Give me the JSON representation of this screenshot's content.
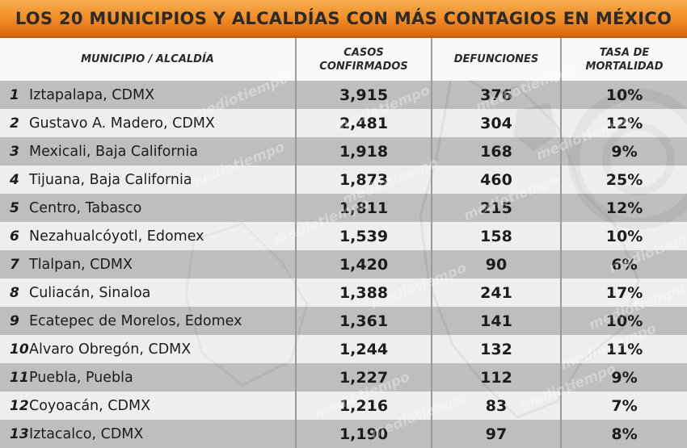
{
  "chart_data": {
    "type": "table",
    "title": "LOS 20 MUNICIPIOS Y ALCALDÍAS CON MÁS CONTAGIOS EN MÉXICO",
    "columns": [
      {
        "label_lines": [
          "MUNICIPIO / ALCALDÍA"
        ]
      },
      {
        "label_lines": [
          "CASOS",
          "CONFIRMADOS"
        ]
      },
      {
        "label_lines": [
          "DEFUNCIONES"
        ]
      },
      {
        "label_lines": [
          "TASA DE",
          "MORTALIDAD"
        ]
      }
    ],
    "rows": [
      {
        "rank": "1",
        "municipio": "Iztapalapa, CDMX",
        "casos": "3,915",
        "defunciones": "376",
        "tasa": "10%"
      },
      {
        "rank": "2",
        "municipio": "Gustavo A. Madero, CDMX",
        "casos": "2,481",
        "defunciones": "304",
        "tasa": "12%"
      },
      {
        "rank": "3",
        "municipio": "Mexicali, Baja California",
        "casos": "1,918",
        "defunciones": "168",
        "tasa": "9%"
      },
      {
        "rank": "4",
        "municipio": "Tijuana, Baja California",
        "casos": "1,873",
        "defunciones": "460",
        "tasa": "25%"
      },
      {
        "rank": "5",
        "municipio": "Centro, Tabasco",
        "casos": "1,811",
        "defunciones": "215",
        "tasa": "12%"
      },
      {
        "rank": "6",
        "municipio": "Nezahualcóyotl, Edomex",
        "casos": "1,539",
        "defunciones": "158",
        "tasa": "10%"
      },
      {
        "rank": "7",
        "municipio": "Tlalpan, CDMX",
        "casos": "1,420",
        "defunciones": "90",
        "tasa": "6%"
      },
      {
        "rank": "8",
        "municipio": "Culiacán, Sinaloa",
        "casos": "1,388",
        "defunciones": "241",
        "tasa": "17%"
      },
      {
        "rank": "9",
        "municipio": "Ecatepec de Morelos, Edomex",
        "casos": "1,361",
        "defunciones": "141",
        "tasa": "10%"
      },
      {
        "rank": "10",
        "municipio": "Alvaro Obregón, CDMX",
        "casos": "1,244",
        "defunciones": "132",
        "tasa": "11%"
      },
      {
        "rank": "11",
        "municipio": "Puebla, Puebla",
        "casos": "1,227",
        "defunciones": "112",
        "tasa": "9%"
      },
      {
        "rank": "12",
        "municipio": "Coyoacán, CDMX",
        "casos": "1,216",
        "defunciones": "83",
        "tasa": "7%"
      },
      {
        "rank": "13",
        "municipio": "Iztacalco, CDMX",
        "casos": "1,190",
        "defunciones": "97",
        "tasa": "8%"
      }
    ]
  },
  "watermark": {
    "text": "mediotiempo"
  },
  "colors": {
    "title_bar": "#f08a22",
    "row_dark": "#9e9e9e",
    "row_light": "#ececec",
    "text": "#1c1c1c"
  }
}
